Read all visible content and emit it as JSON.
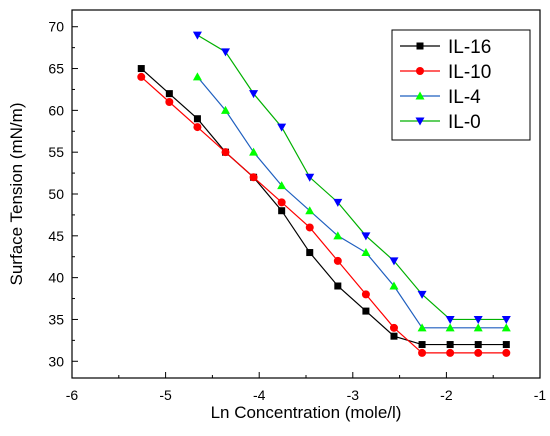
{
  "chart_data": {
    "type": "line",
    "xlabel": "Ln Concentration (mole/l)",
    "ylabel": "Surface Tension (mN/m)",
    "xlim": [
      -6,
      -1
    ],
    "ylim": [
      28,
      72
    ],
    "xticks": [
      -6,
      -5,
      -4,
      -3,
      -2,
      -1
    ],
    "yticks": [
      30,
      35,
      40,
      45,
      50,
      55,
      60,
      65,
      70
    ],
    "legend_position": "top-right",
    "series": [
      {
        "name": "IL-16",
        "color": "#000000",
        "marker": "square",
        "x": [
          -5.26,
          -4.96,
          -4.66,
          -4.36,
          -4.06,
          -3.76,
          -3.46,
          -3.16,
          -2.86,
          -2.56,
          -2.26,
          -1.96,
          -1.66,
          -1.36
        ],
        "y": [
          65,
          62,
          59,
          55,
          52,
          48,
          43,
          39,
          36,
          33,
          32,
          32,
          32,
          32
        ]
      },
      {
        "name": "IL-10",
        "color": "#ff0000",
        "marker": "circle",
        "x": [
          -5.26,
          -4.96,
          -4.66,
          -4.36,
          -4.06,
          -3.76,
          -3.46,
          -3.16,
          -2.86,
          -2.56,
          -2.26,
          -1.96,
          -1.66,
          -1.36
        ],
        "y": [
          64,
          61,
          58,
          55,
          52,
          49,
          46,
          42,
          38,
          34,
          31,
          31,
          31,
          31
        ]
      },
      {
        "name": "IL-4",
        "color": "#00ff00",
        "line_color": "#1f5fbf",
        "marker": "triangle-up",
        "x": [
          -4.66,
          -4.36,
          -4.06,
          -3.76,
          -3.46,
          -3.16,
          -2.86,
          -2.56,
          -2.26,
          -1.96,
          -1.66,
          -1.36
        ],
        "y": [
          64,
          60,
          55,
          51,
          48,
          45,
          43,
          39,
          34,
          34,
          34,
          34
        ]
      },
      {
        "name": "IL-0",
        "color": "#0000ff",
        "line_color": "#00b000",
        "marker": "triangle-down",
        "x": [
          -4.66,
          -4.36,
          -4.06,
          -3.76,
          -3.46,
          -3.16,
          -2.86,
          -2.56,
          -2.26,
          -1.96,
          -1.66,
          -1.36
        ],
        "y": [
          69,
          67,
          62,
          58,
          52,
          49,
          45,
          42,
          38,
          35,
          35,
          35
        ]
      }
    ]
  }
}
